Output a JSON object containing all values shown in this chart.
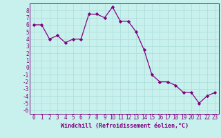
{
  "xlabel": "Windchill (Refroidissement éolien,°C)",
  "x_values": [
    0,
    1,
    2,
    3,
    4,
    5,
    6,
    7,
    8,
    9,
    10,
    11,
    12,
    13,
    14,
    15,
    16,
    17,
    18,
    19,
    20,
    21,
    22,
    23
  ],
  "y_values": [
    6.0,
    6.0,
    4.0,
    4.5,
    3.5,
    4.0,
    4.0,
    7.5,
    7.5,
    7.0,
    8.5,
    6.5,
    6.5,
    5.0,
    2.5,
    -1.0,
    -2.0,
    -2.0,
    -2.5,
    -3.5,
    -3.5,
    -5.0,
    -4.0,
    -3.5
  ],
  "line_color": "#800080",
  "marker": "D",
  "marker_size": 2.2,
  "bg_color": "#c8f0ec",
  "grid_color": "#aaddda",
  "ylim": [
    -6.5,
    9.0
  ],
  "xlim": [
    -0.5,
    23.5
  ],
  "yticks": [
    -6,
    -5,
    -4,
    -3,
    -2,
    -1,
    0,
    1,
    2,
    3,
    4,
    5,
    6,
    7,
    8
  ],
  "xticks": [
    0,
    1,
    2,
    3,
    4,
    5,
    6,
    7,
    8,
    9,
    10,
    11,
    12,
    13,
    14,
    15,
    16,
    17,
    18,
    19,
    20,
    21,
    22,
    23
  ],
  "tick_fontsize": 5.5,
  "xlabel_fontsize": 6.0
}
